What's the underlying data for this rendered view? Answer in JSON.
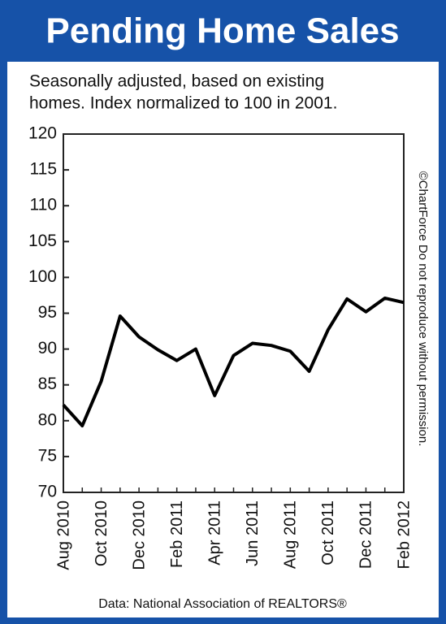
{
  "chart_data": {
    "type": "line",
    "title": "Pending Home Sales",
    "subtitle": [
      "Seasonally adjusted, based on existing",
      "homes. Index normalized to 100 in 2001."
    ],
    "categories": [
      "Aug 2010",
      null,
      "Oct 2010",
      null,
      "Dec 2010",
      null,
      "Feb 2011",
      null,
      "Apr 2011",
      null,
      "Jun 2011",
      null,
      "Aug 2011",
      null,
      "Oct 2011",
      null,
      "Dec 2011",
      null,
      "Feb 2012"
    ],
    "values": [
      82.2,
      79.3,
      85.5,
      94.6,
      91.7,
      89.9,
      88.4,
      90.0,
      83.5,
      89.1,
      90.8,
      90.5,
      89.7,
      86.9,
      92.7,
      97.0,
      95.2,
      97.1,
      96.5
    ],
    "color": "#000000",
    "frame_color": "#1652a8",
    "ylim": [
      70,
      120
    ],
    "yticks": [
      70,
      75,
      80,
      85,
      90,
      95,
      100,
      105,
      110,
      115,
      120
    ],
    "copyright": "©ChartForce  Do not reproduce without permission.",
    "source": "Data: National Association of REALTORS®"
  }
}
